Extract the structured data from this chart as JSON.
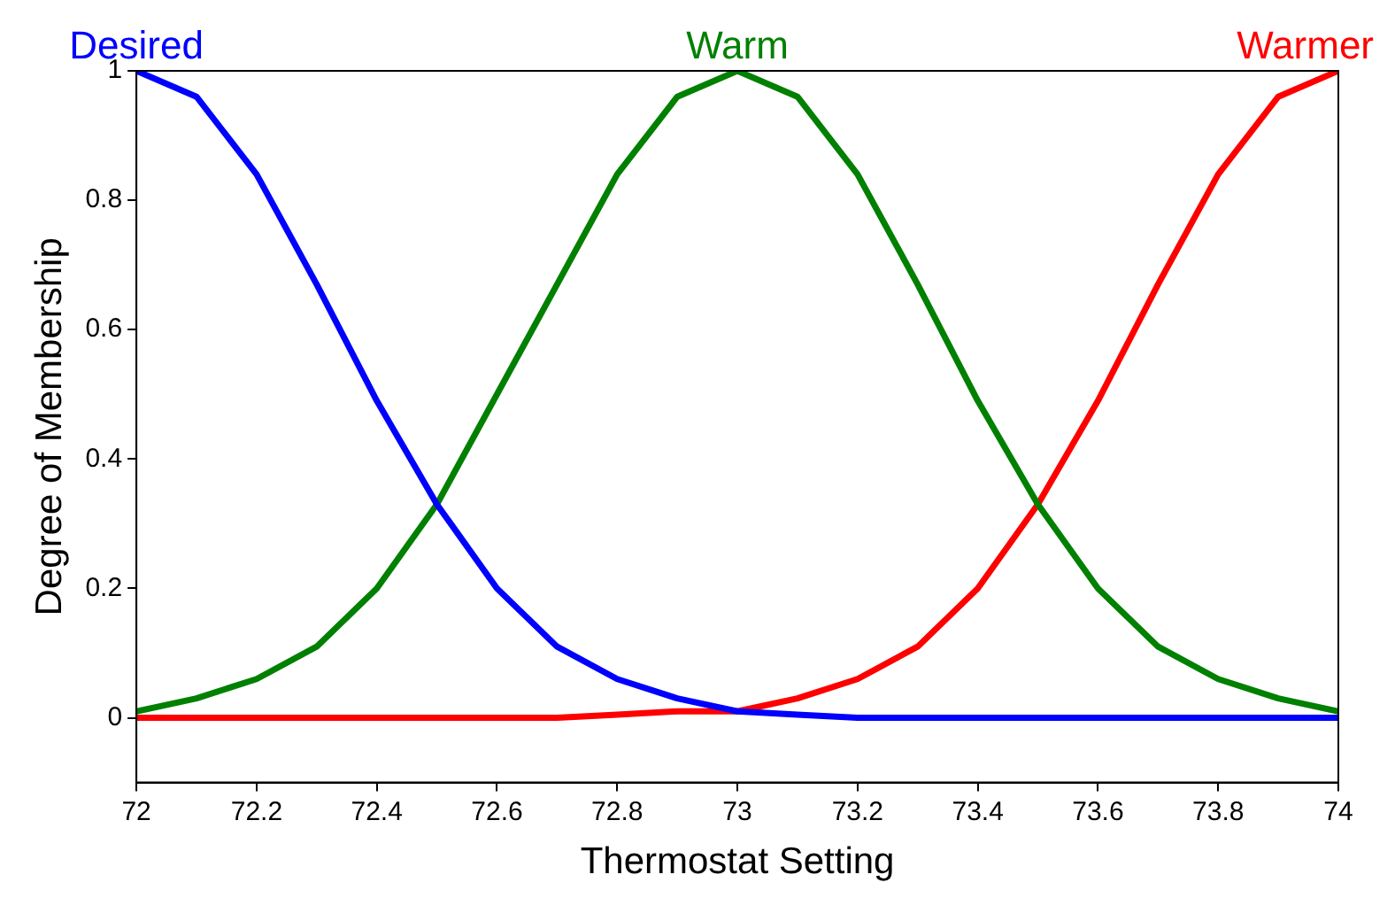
{
  "chart_data": {
    "type": "line",
    "xlabel": "Thermostat Setting",
    "ylabel": "Degree of Membership",
    "x": [
      72,
      72.1,
      72.2,
      72.3,
      72.4,
      72.5,
      72.6,
      72.7,
      72.8,
      72.9,
      73,
      73.1,
      73.2,
      73.3,
      73.4,
      73.5,
      73.6,
      73.7,
      73.8,
      73.9,
      74
    ],
    "series": [
      {
        "name": "Desired",
        "color": "#0000ff",
        "values": [
          1,
          0.96,
          0.84,
          0.67,
          0.49,
          0.33,
          0.2,
          0.11,
          0.06,
          0.03,
          0.01,
          0.005,
          0,
          0,
          0,
          0,
          0,
          0,
          0,
          0,
          0
        ]
      },
      {
        "name": "Warm",
        "color": "#008000",
        "values": [
          0.01,
          0.03,
          0.06,
          0.11,
          0.2,
          0.33,
          0.5,
          0.67,
          0.84,
          0.96,
          1,
          0.96,
          0.84,
          0.67,
          0.49,
          0.33,
          0.2,
          0.11,
          0.06,
          0.03,
          0.01
        ]
      },
      {
        "name": "Warmer",
        "color": "#ff0000",
        "values": [
          0,
          0,
          0,
          0,
          0,
          0,
          0,
          0,
          0.005,
          0.01,
          0.01,
          0.03,
          0.06,
          0.11,
          0.2,
          0.33,
          0.49,
          0.67,
          0.84,
          0.96,
          1
        ]
      }
    ],
    "xlim": [
      72,
      74
    ],
    "xticks": [
      72,
      72.2,
      72.4,
      72.6,
      72.8,
      73,
      73.2,
      73.4,
      73.6,
      73.8,
      74
    ],
    "ylim": [
      -0.1,
      1
    ],
    "yticks": [
      0,
      0.2,
      0.4,
      0.6,
      0.8,
      1
    ],
    "grid": false,
    "legend": false
  }
}
